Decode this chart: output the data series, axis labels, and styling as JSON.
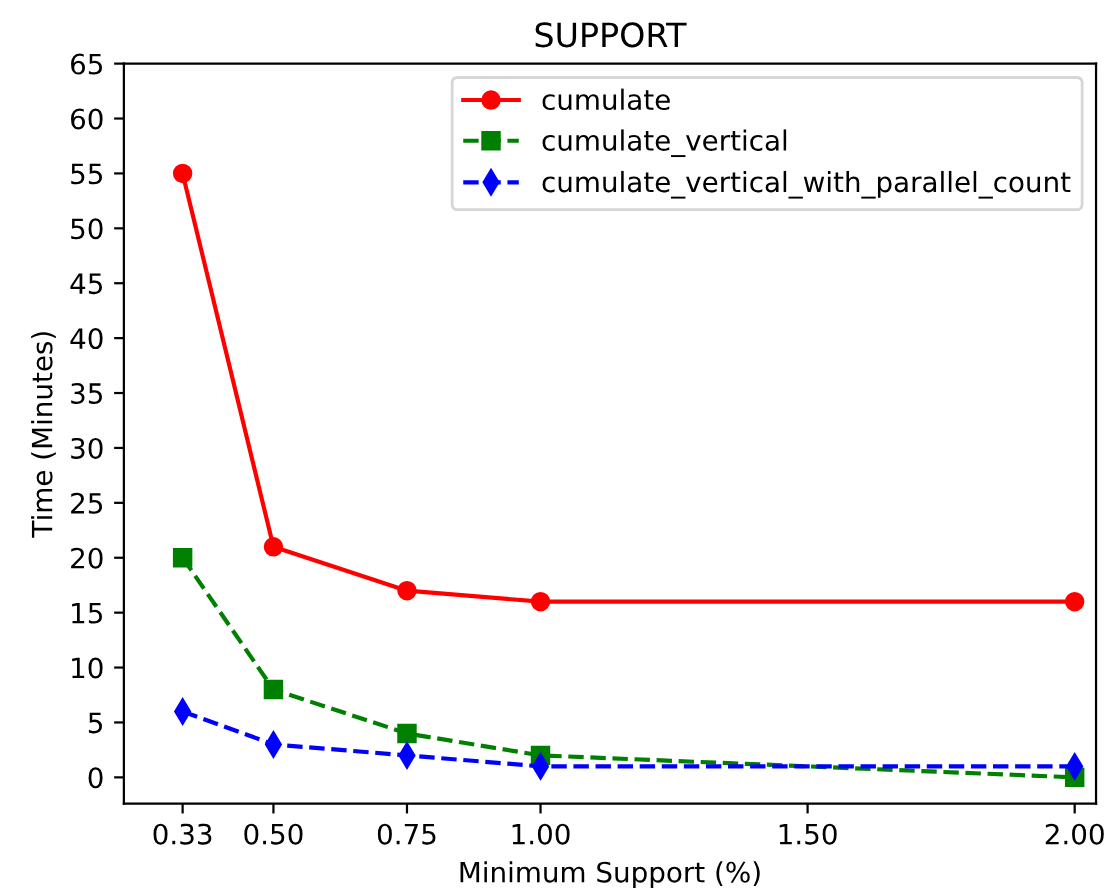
{
  "chart_data": {
    "type": "line",
    "title": "SUPPORT",
    "xlabel": "Minimum Support (%)",
    "ylabel": "Time (Minutes)",
    "x": [
      0.33,
      0.5,
      0.75,
      1.0,
      2.0
    ],
    "series": [
      {
        "name": "cumulate",
        "color": "#ff0000",
        "values": [
          55,
          21,
          17,
          16,
          16
        ],
        "marker": "circle",
        "line_style": "solid"
      },
      {
        "name": "cumulate_vertical",
        "color": "#008000",
        "values": [
          20,
          8,
          4,
          2,
          0
        ],
        "marker": "square",
        "line_style": "dashed"
      },
      {
        "name": "cumulate_vertical_with_parallel_count",
        "color": "#0000ff",
        "values": [
          6,
          3,
          2,
          1,
          1
        ],
        "marker": "diamond",
        "line_style": "dashed"
      }
    ],
    "xlim": [
      0.22,
      2.04
    ],
    "xticks": [
      {
        "value": 0.33,
        "label": "0.33"
      },
      {
        "value": 0.5,
        "label": "0.50"
      },
      {
        "value": 0.75,
        "label": "0.75"
      },
      {
        "value": 1.0,
        "label": "1.00"
      },
      {
        "value": 1.5,
        "label": "1.50"
      },
      {
        "value": 2.0,
        "label": "2.00"
      }
    ],
    "ylim": [
      -2.4,
      65
    ],
    "yticks": [
      0,
      5,
      10,
      15,
      20,
      25,
      30,
      35,
      40,
      45,
      50,
      55,
      60,
      65
    ],
    "grid": false,
    "legend": "top right"
  }
}
